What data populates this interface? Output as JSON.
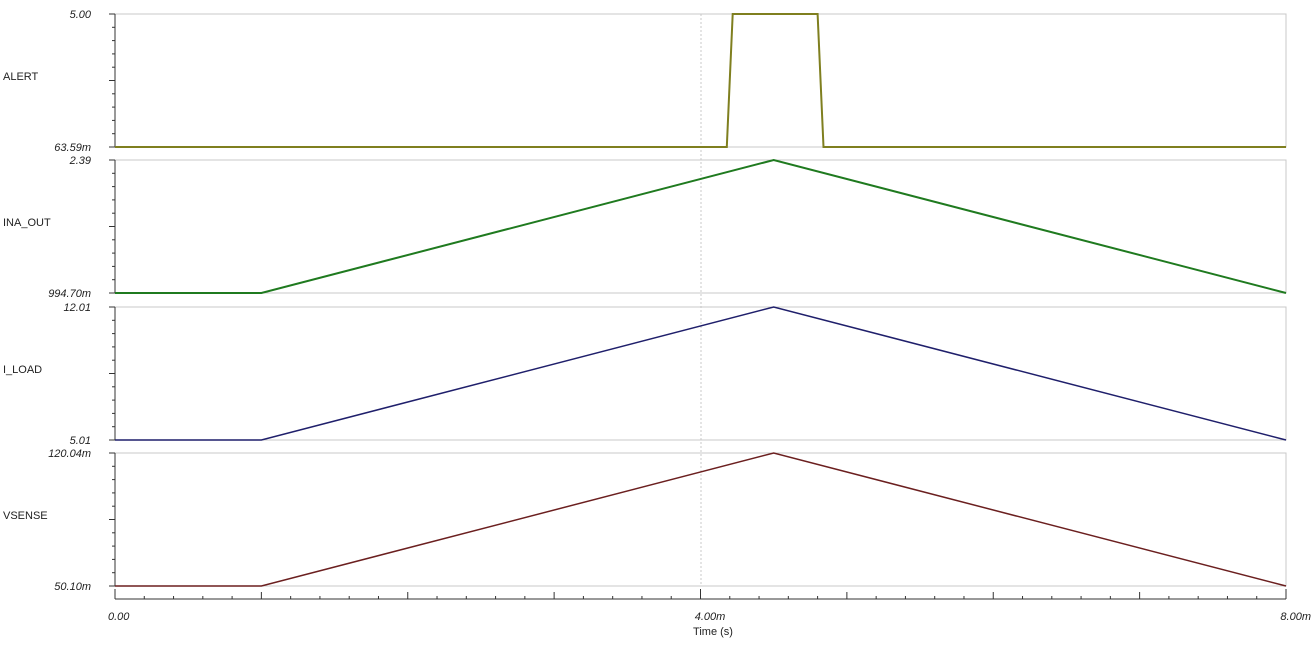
{
  "chart_data": {
    "type": "line",
    "xlabel": "Time (s)",
    "x_tick_labels": [
      "0.00",
      "4.00m",
      "8.00m"
    ],
    "x_ticks": [
      0,
      0.004,
      0.008
    ],
    "xlim": [
      0,
      0.008
    ],
    "grid": "vertical dashed line at 4.00m",
    "panels": [
      {
        "name": "ALERT",
        "color": "#7f7f1f",
        "ylim": [
          0.06359,
          5.0
        ],
        "y_top_label": "5.00",
        "y_bottom_label": "63.59m",
        "x": [
          0,
          0.00418,
          0.00422,
          0.0048,
          0.00484,
          0.008
        ],
        "y": [
          0.06359,
          0.06359,
          5.0,
          5.0,
          0.06359,
          0.06359
        ]
      },
      {
        "name": "INA_OUT",
        "color": "#1f7a1f",
        "ylim": [
          0.9947,
          2.39
        ],
        "y_top_label": "2.39",
        "y_bottom_label": "994.70m",
        "x": [
          0,
          0.001,
          0.0045,
          0.008
        ],
        "y": [
          0.9947,
          0.9947,
          2.39,
          0.9947
        ]
      },
      {
        "name": "I_LOAD",
        "color": "#1f1f6b",
        "ylim": [
          5.01,
          12.01
        ],
        "y_top_label": "12.01",
        "y_bottom_label": "5.01",
        "x": [
          0,
          0.001,
          0.0045,
          0.008
        ],
        "y": [
          5.01,
          5.01,
          12.01,
          5.01
        ]
      },
      {
        "name": "VSENSE",
        "color": "#6b1f1f",
        "ylim": [
          0.0501,
          0.12004
        ],
        "y_top_label": "120.04m",
        "y_bottom_label": "50.10m",
        "x": [
          0,
          0.001,
          0.0045,
          0.008
        ],
        "y": [
          0.0501,
          0.0501,
          0.12004,
          0.0501
        ]
      }
    ]
  }
}
